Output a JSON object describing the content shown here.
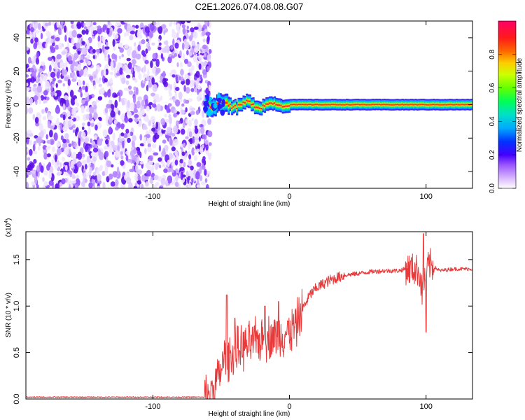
{
  "chart_data": [
    {
      "type": "heatmap",
      "title": "C2E1.2026.074.08.08.G07",
      "xlabel": "Height of straight line (km)",
      "ylabel": "Frequency (Hz)",
      "xlim": [
        -193,
        134
      ],
      "ylim": [
        -50,
        50
      ],
      "xticks": [
        -100,
        0,
        100
      ],
      "xtick_labels": [
        "-100",
        "0",
        "100"
      ],
      "yticks": [
        -40,
        -20,
        0,
        20,
        40
      ],
      "ytick_labels": [
        "-40",
        "-20",
        "0",
        "20",
        "40"
      ],
      "noise_region_km": [
        -193,
        -58
      ],
      "signal_start_km": -62,
      "colorbar": {
        "label": "Normalized spectral amplitude",
        "range": [
          0,
          1
        ],
        "ticks": [
          0.0,
          0.2,
          0.4,
          0.6,
          0.8
        ],
        "tick_labels": [
          "0.0",
          "0.2",
          "0.4",
          "0.6",
          "0.8"
        ],
        "colors": [
          "#ffffff",
          "#cc99ff",
          "#6600ff",
          "#0000ff",
          "#00ccff",
          "#00ff66",
          "#99ff00",
          "#ffcc00",
          "#ff3300",
          "#ff0066"
        ]
      }
    },
    {
      "type": "line",
      "title": "",
      "xlabel": "Height of straight line (km)",
      "ylabel": "SNR (10 * v/v)",
      "scale_note": "(x10",
      "scale_exp": "4",
      "scale_close": ")",
      "xlim": [
        -193,
        134
      ],
      "ylim": [
        0,
        1.8
      ],
      "xticks": [
        -100,
        0,
        100
      ],
      "xtick_labels": [
        "-100",
        "0",
        "100"
      ],
      "yticks": [
        0,
        0.5,
        1.0,
        1.5
      ],
      "ytick_labels": [
        "0.0",
        "0.5",
        "1.0",
        "1.5"
      ],
      "line_color": "#e83a3a",
      "series_knots": {
        "x": [
          -193,
          -62,
          -58,
          -50,
          -48,
          -45,
          -40,
          -35,
          -30,
          -25,
          -20,
          -15,
          -10,
          -5,
          0,
          5,
          10,
          15,
          20,
          30,
          40,
          50,
          60,
          70,
          80,
          85,
          90,
          95,
          97,
          100,
          103,
          110,
          120,
          134
        ],
        "y": [
          0.02,
          0.02,
          0.05,
          0.3,
          0.45,
          0.45,
          0.5,
          0.55,
          0.58,
          0.62,
          0.64,
          0.66,
          0.68,
          0.7,
          0.72,
          0.8,
          0.98,
          1.12,
          1.2,
          1.28,
          1.33,
          1.35,
          1.37,
          1.38,
          1.38,
          1.4,
          1.4,
          1.38,
          1.15,
          1.38,
          1.45,
          1.38,
          1.4,
          1.4
        ]
      },
      "notable_spikes": [
        {
          "x": -46,
          "y": 1.12
        },
        {
          "x": -40,
          "y": 0.87
        },
        {
          "x": -18,
          "y": 1.0
        },
        {
          "x": -8,
          "y": 1.05
        },
        {
          "x": 98,
          "y": 1.78
        },
        {
          "x": 100,
          "y": 0.72
        }
      ]
    }
  ]
}
